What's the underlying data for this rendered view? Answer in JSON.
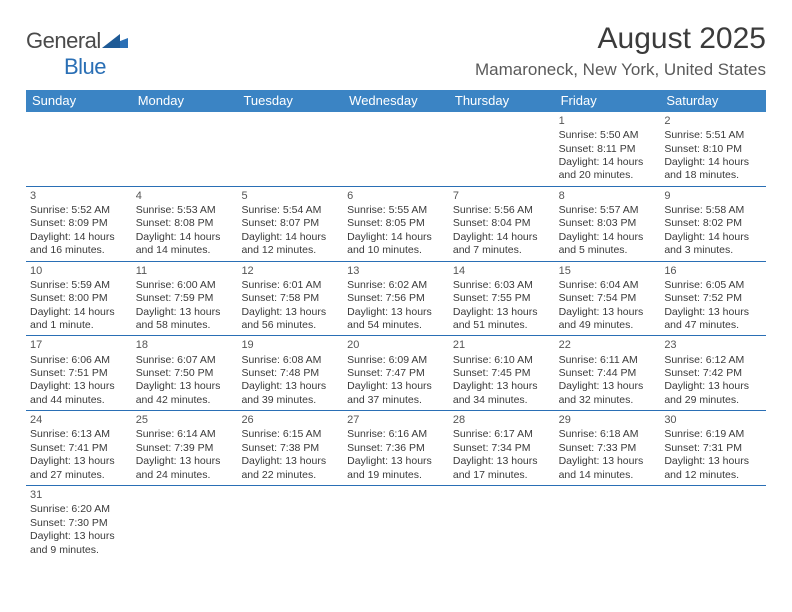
{
  "logo": {
    "general": "General",
    "blue": "Blue"
  },
  "title": "August 2025",
  "location": "Mamaroneck, New York, United States",
  "colors": {
    "header_bg": "#3b84c4",
    "border": "#2a6fb5",
    "text_dark": "#3b3b3b",
    "text_body": "#3a3a3a",
    "logo_blue": "#2a6fb5"
  },
  "days_of_week": [
    "Sunday",
    "Monday",
    "Tuesday",
    "Wednesday",
    "Thursday",
    "Friday",
    "Saturday"
  ],
  "weeks": [
    [
      null,
      null,
      null,
      null,
      null,
      {
        "n": "1",
        "sunrise": "Sunrise: 5:50 AM",
        "sunset": "Sunset: 8:11 PM",
        "daylight": "Daylight: 14 hours and 20 minutes."
      },
      {
        "n": "2",
        "sunrise": "Sunrise: 5:51 AM",
        "sunset": "Sunset: 8:10 PM",
        "daylight": "Daylight: 14 hours and 18 minutes."
      }
    ],
    [
      {
        "n": "3",
        "sunrise": "Sunrise: 5:52 AM",
        "sunset": "Sunset: 8:09 PM",
        "daylight": "Daylight: 14 hours and 16 minutes."
      },
      {
        "n": "4",
        "sunrise": "Sunrise: 5:53 AM",
        "sunset": "Sunset: 8:08 PM",
        "daylight": "Daylight: 14 hours and 14 minutes."
      },
      {
        "n": "5",
        "sunrise": "Sunrise: 5:54 AM",
        "sunset": "Sunset: 8:07 PM",
        "daylight": "Daylight: 14 hours and 12 minutes."
      },
      {
        "n": "6",
        "sunrise": "Sunrise: 5:55 AM",
        "sunset": "Sunset: 8:05 PM",
        "daylight": "Daylight: 14 hours and 10 minutes."
      },
      {
        "n": "7",
        "sunrise": "Sunrise: 5:56 AM",
        "sunset": "Sunset: 8:04 PM",
        "daylight": "Daylight: 14 hours and 7 minutes."
      },
      {
        "n": "8",
        "sunrise": "Sunrise: 5:57 AM",
        "sunset": "Sunset: 8:03 PM",
        "daylight": "Daylight: 14 hours and 5 minutes."
      },
      {
        "n": "9",
        "sunrise": "Sunrise: 5:58 AM",
        "sunset": "Sunset: 8:02 PM",
        "daylight": "Daylight: 14 hours and 3 minutes."
      }
    ],
    [
      {
        "n": "10",
        "sunrise": "Sunrise: 5:59 AM",
        "sunset": "Sunset: 8:00 PM",
        "daylight": "Daylight: 14 hours and 1 minute."
      },
      {
        "n": "11",
        "sunrise": "Sunrise: 6:00 AM",
        "sunset": "Sunset: 7:59 PM",
        "daylight": "Daylight: 13 hours and 58 minutes."
      },
      {
        "n": "12",
        "sunrise": "Sunrise: 6:01 AM",
        "sunset": "Sunset: 7:58 PM",
        "daylight": "Daylight: 13 hours and 56 minutes."
      },
      {
        "n": "13",
        "sunrise": "Sunrise: 6:02 AM",
        "sunset": "Sunset: 7:56 PM",
        "daylight": "Daylight: 13 hours and 54 minutes."
      },
      {
        "n": "14",
        "sunrise": "Sunrise: 6:03 AM",
        "sunset": "Sunset: 7:55 PM",
        "daylight": "Daylight: 13 hours and 51 minutes."
      },
      {
        "n": "15",
        "sunrise": "Sunrise: 6:04 AM",
        "sunset": "Sunset: 7:54 PM",
        "daylight": "Daylight: 13 hours and 49 minutes."
      },
      {
        "n": "16",
        "sunrise": "Sunrise: 6:05 AM",
        "sunset": "Sunset: 7:52 PM",
        "daylight": "Daylight: 13 hours and 47 minutes."
      }
    ],
    [
      {
        "n": "17",
        "sunrise": "Sunrise: 6:06 AM",
        "sunset": "Sunset: 7:51 PM",
        "daylight": "Daylight: 13 hours and 44 minutes."
      },
      {
        "n": "18",
        "sunrise": "Sunrise: 6:07 AM",
        "sunset": "Sunset: 7:50 PM",
        "daylight": "Daylight: 13 hours and 42 minutes."
      },
      {
        "n": "19",
        "sunrise": "Sunrise: 6:08 AM",
        "sunset": "Sunset: 7:48 PM",
        "daylight": "Daylight: 13 hours and 39 minutes."
      },
      {
        "n": "20",
        "sunrise": "Sunrise: 6:09 AM",
        "sunset": "Sunset: 7:47 PM",
        "daylight": "Daylight: 13 hours and 37 minutes."
      },
      {
        "n": "21",
        "sunrise": "Sunrise: 6:10 AM",
        "sunset": "Sunset: 7:45 PM",
        "daylight": "Daylight: 13 hours and 34 minutes."
      },
      {
        "n": "22",
        "sunrise": "Sunrise: 6:11 AM",
        "sunset": "Sunset: 7:44 PM",
        "daylight": "Daylight: 13 hours and 32 minutes."
      },
      {
        "n": "23",
        "sunrise": "Sunrise: 6:12 AM",
        "sunset": "Sunset: 7:42 PM",
        "daylight": "Daylight: 13 hours and 29 minutes."
      }
    ],
    [
      {
        "n": "24",
        "sunrise": "Sunrise: 6:13 AM",
        "sunset": "Sunset: 7:41 PM",
        "daylight": "Daylight: 13 hours and 27 minutes."
      },
      {
        "n": "25",
        "sunrise": "Sunrise: 6:14 AM",
        "sunset": "Sunset: 7:39 PM",
        "daylight": "Daylight: 13 hours and 24 minutes."
      },
      {
        "n": "26",
        "sunrise": "Sunrise: 6:15 AM",
        "sunset": "Sunset: 7:38 PM",
        "daylight": "Daylight: 13 hours and 22 minutes."
      },
      {
        "n": "27",
        "sunrise": "Sunrise: 6:16 AM",
        "sunset": "Sunset: 7:36 PM",
        "daylight": "Daylight: 13 hours and 19 minutes."
      },
      {
        "n": "28",
        "sunrise": "Sunrise: 6:17 AM",
        "sunset": "Sunset: 7:34 PM",
        "daylight": "Daylight: 13 hours and 17 minutes."
      },
      {
        "n": "29",
        "sunrise": "Sunrise: 6:18 AM",
        "sunset": "Sunset: 7:33 PM",
        "daylight": "Daylight: 13 hours and 14 minutes."
      },
      {
        "n": "30",
        "sunrise": "Sunrise: 6:19 AM",
        "sunset": "Sunset: 7:31 PM",
        "daylight": "Daylight: 13 hours and 12 minutes."
      }
    ],
    [
      {
        "n": "31",
        "sunrise": "Sunrise: 6:20 AM",
        "sunset": "Sunset: 7:30 PM",
        "daylight": "Daylight: 13 hours and 9 minutes."
      },
      null,
      null,
      null,
      null,
      null,
      null
    ]
  ]
}
